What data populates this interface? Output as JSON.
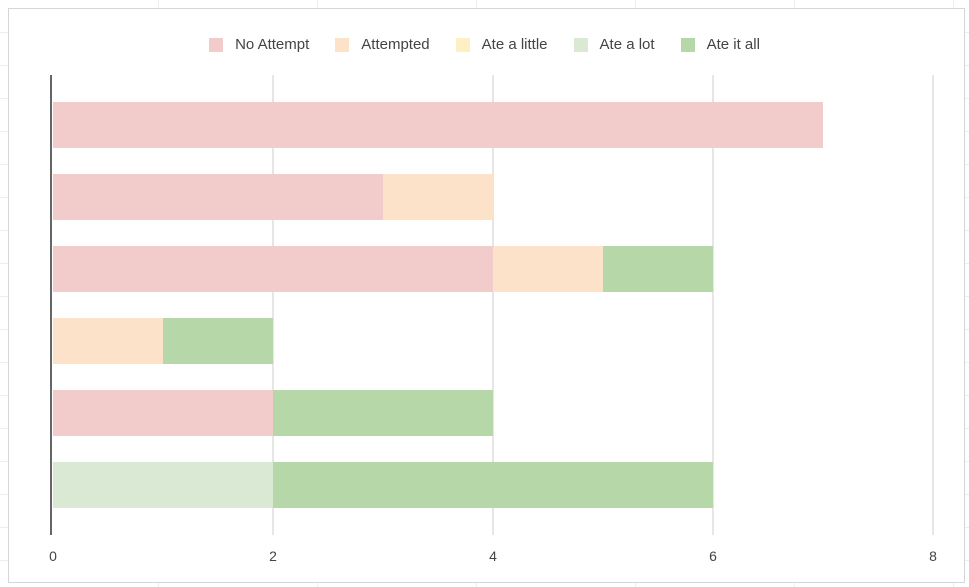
{
  "chart_data": {
    "type": "bar",
    "orientation": "horizontal",
    "stacked": true,
    "title": "",
    "xlabel": "",
    "ylabel": "",
    "xlim": [
      0,
      8
    ],
    "x_ticks": [
      0,
      2,
      4,
      6,
      8
    ],
    "grid": true,
    "legend_position": "top",
    "categories": [
      "",
      "",
      "",
      "",
      "",
      ""
    ],
    "series": [
      {
        "name": "No Attempt",
        "color": "#f2cbcb",
        "values": [
          7,
          3,
          4,
          0,
          2,
          0
        ]
      },
      {
        "name": "Attempted",
        "color": "#fbe2c8",
        "values": [
          0,
          1,
          1,
          1,
          0,
          0
        ]
      },
      {
        "name": "Ate a little",
        "color": "#fdf0c4",
        "values": [
          0,
          0,
          0,
          0,
          0,
          0
        ]
      },
      {
        "name": "Ate a lot",
        "color": "#d9e9d3",
        "values": [
          0,
          0,
          0,
          0,
          0,
          2
        ]
      },
      {
        "name": "Ate it all",
        "color": "#b6d7a8",
        "values": [
          0,
          0,
          1,
          1,
          2,
          4
        ]
      }
    ]
  }
}
